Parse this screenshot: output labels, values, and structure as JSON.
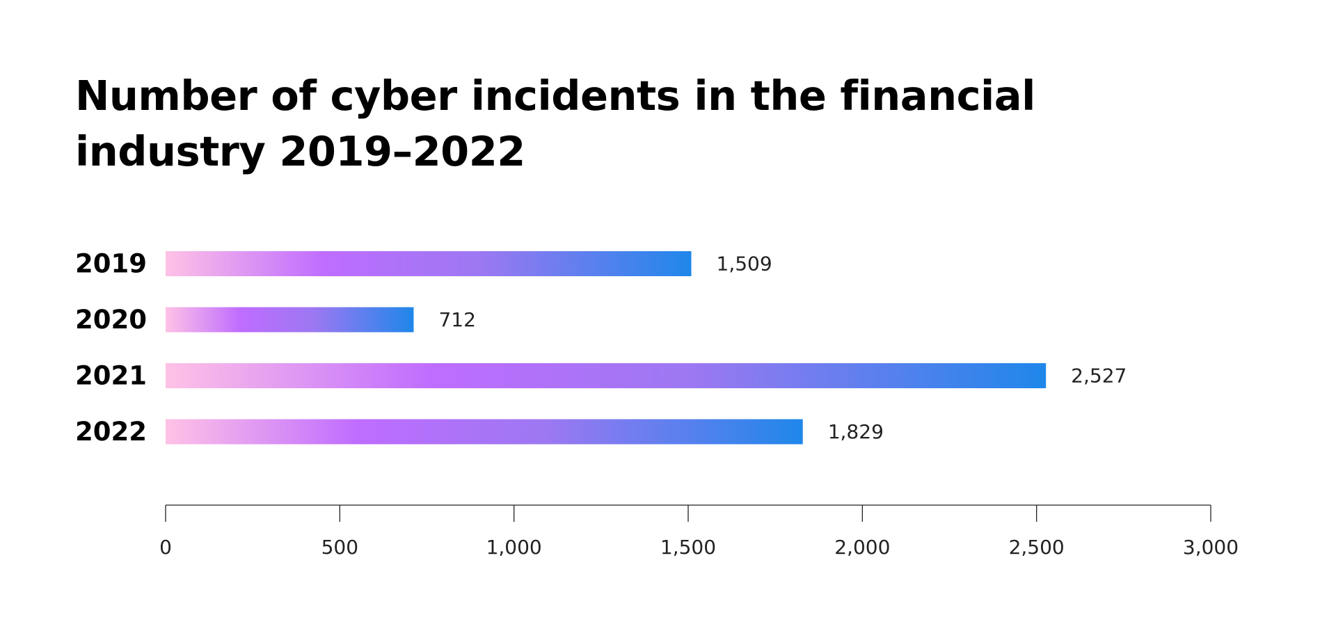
{
  "chart_data": {
    "type": "bar",
    "orientation": "horizontal",
    "title": "Number of cyber incidents in the financial industry 2019–2022",
    "categories": [
      "2019",
      "2020",
      "2021",
      "2022"
    ],
    "values": [
      1509,
      712,
      2527,
      1829
    ],
    "value_labels": [
      "1,509",
      "712",
      "2,527",
      "1,829"
    ],
    "xlim": [
      0,
      3000
    ],
    "x_ticks": [
      0,
      500,
      1000,
      1500,
      2000,
      2500,
      3000
    ],
    "x_tick_labels": [
      "0",
      "500",
      "1,000",
      "1,500",
      "2,000",
      "2,500",
      "3,000"
    ],
    "grid": false,
    "legend": "none",
    "colors": {
      "gradient_start": "#ffc2e6",
      "gradient_mid": "#bf6dff",
      "gradient_end": "#1f87ea",
      "axis": "#222222",
      "text": "#000000"
    }
  }
}
